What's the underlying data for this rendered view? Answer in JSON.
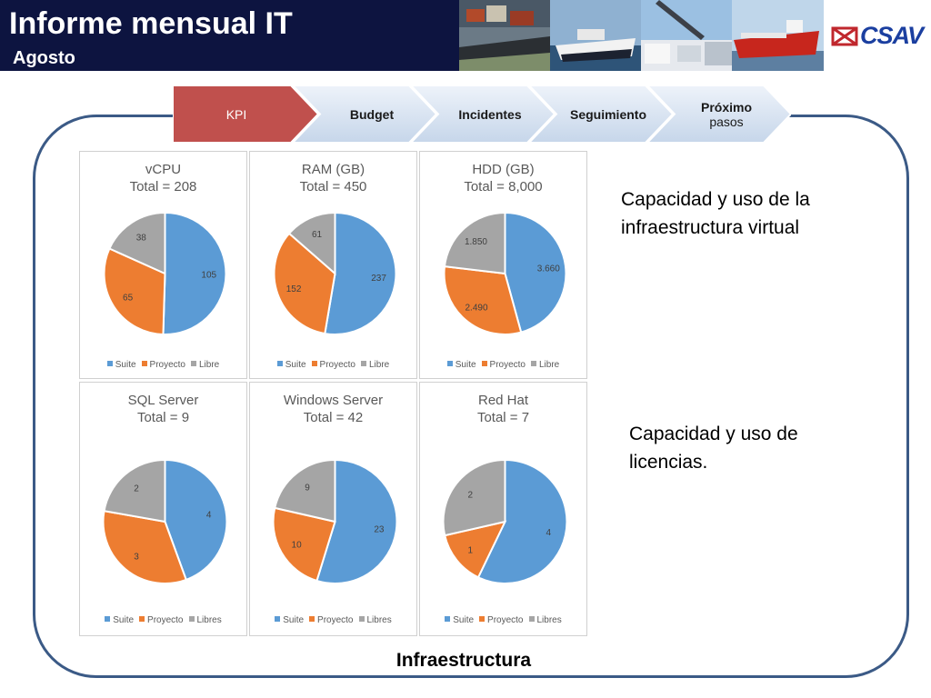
{
  "header": {
    "title": "Informe mensual IT",
    "subtitle": "Agosto",
    "logo_text": "CSAV"
  },
  "process": {
    "steps": [
      {
        "label": "KPI",
        "sub": "",
        "active": true
      },
      {
        "label": "Budget",
        "sub": "",
        "active": false
      },
      {
        "label": "Incidentes",
        "sub": "",
        "active": false
      },
      {
        "label": "Seguimiento",
        "sub": "",
        "active": false
      },
      {
        "label": "Próximo",
        "sub": "pasos",
        "active": false
      }
    ]
  },
  "side_text": {
    "virtual": "Capacidad y uso de la infraestructura virtual",
    "licenses": "Capacidad y uso de licencias."
  },
  "frame_caption": "Infraestructura",
  "colors": {
    "suite": "#5b9bd5",
    "proyecto": "#ed7d31",
    "libre": "#a5a5a5",
    "active_step": "#c0504d",
    "step": "#dce6f2",
    "frame": "#3b5a86",
    "header_bg": "#0d1440"
  },
  "chart_data": [
    {
      "type": "pie",
      "title": "vCPU",
      "subtitle": "Total = 208",
      "categories": [
        "Suite",
        "Proyecto",
        "Libre"
      ],
      "values": [
        105,
        65,
        38
      ],
      "value_labels": [
        "105",
        "65",
        "38"
      ]
    },
    {
      "type": "pie",
      "title": "RAM (GB)",
      "subtitle": "Total = 450",
      "categories": [
        "Suite",
        "Proyecto",
        "Libre"
      ],
      "values": [
        237,
        152,
        61
      ],
      "value_labels": [
        "237",
        "152",
        "61"
      ]
    },
    {
      "type": "pie",
      "title": "HDD (GB)",
      "subtitle": "Total = 8,000",
      "categories": [
        "Suite",
        "Proyecto",
        "Libre"
      ],
      "values": [
        3660,
        2490,
        1850
      ],
      "value_labels": [
        "3.660",
        "2.490",
        "1.850"
      ]
    },
    {
      "type": "pie",
      "title": "SQL Server",
      "subtitle": "Total = 9",
      "categories": [
        "Suite",
        "Proyecto",
        "Libres"
      ],
      "values": [
        4,
        3,
        2
      ],
      "value_labels": [
        "4",
        "3",
        "2"
      ]
    },
    {
      "type": "pie",
      "title": "Windows Server",
      "subtitle": "Total = 42",
      "categories": [
        "Suite",
        "Proyecto",
        "Libres"
      ],
      "values": [
        23,
        10,
        9
      ],
      "value_labels": [
        "23",
        "10",
        "9"
      ]
    },
    {
      "type": "pie",
      "title": "Red Hat",
      "subtitle": "Total = 7",
      "categories": [
        "Suite",
        "Proyecto",
        "Libres"
      ],
      "values": [
        4,
        1,
        2
      ],
      "value_labels": [
        "4",
        "1",
        "2"
      ]
    }
  ]
}
